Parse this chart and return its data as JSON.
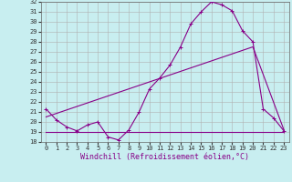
{
  "bg_color": "#c8eef0",
  "line_color": "#880088",
  "grid_color": "#b0b0b0",
  "xlim": [
    -0.5,
    23.5
  ],
  "ylim": [
    18,
    32
  ],
  "xticks": [
    0,
    1,
    2,
    3,
    4,
    5,
    6,
    7,
    8,
    9,
    10,
    11,
    12,
    13,
    14,
    15,
    16,
    17,
    18,
    19,
    20,
    21,
    22,
    23
  ],
  "yticks": [
    18,
    19,
    20,
    21,
    22,
    23,
    24,
    25,
    26,
    27,
    28,
    29,
    30,
    31,
    32
  ],
  "curve1_x": [
    0,
    1,
    2,
    3,
    4,
    5,
    6,
    7,
    8,
    9,
    10,
    11,
    12,
    13,
    14,
    15,
    16,
    17,
    18,
    19,
    20,
    21,
    22,
    23
  ],
  "curve1_y": [
    21.3,
    20.2,
    19.5,
    19.1,
    19.7,
    20.0,
    18.5,
    18.2,
    19.2,
    21.0,
    23.3,
    24.4,
    25.7,
    27.5,
    29.8,
    31.0,
    32.0,
    31.7,
    31.1,
    29.1,
    28.0,
    21.3,
    20.4,
    19.1
  ],
  "line1_x": [
    0,
    23
  ],
  "line1_y": [
    19.0,
    19.0
  ],
  "line2_x": [
    0,
    20,
    23
  ],
  "line2_y": [
    20.5,
    27.5,
    19.2
  ],
  "xlabel": "Windchill (Refroidissement éolien,°C)",
  "tick_fontsize": 5,
  "label_fontsize": 6,
  "font_family": "monospace"
}
